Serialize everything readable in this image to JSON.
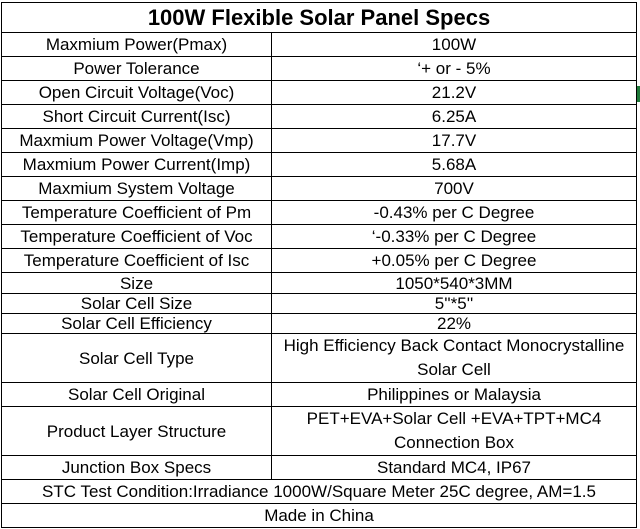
{
  "title": "100W Flexible Solar Panel Specs",
  "rows": [
    {
      "label": "Maxmium Power(Pmax)",
      "value": "100W"
    },
    {
      "label": "Power Tolerance",
      "value": "‘+ or - 5%"
    },
    {
      "label": "Open Circuit Voltage(Voc)",
      "value": "21.2V"
    },
    {
      "label": "Short Circuit Current(Isc)",
      "value": "6.25A"
    },
    {
      "label": "Maxmium Power Voltage(Vmp)",
      "value": "17.7V"
    },
    {
      "label": "Maxmium Power Current(Imp)",
      "value": "5.68A"
    },
    {
      "label": "Maxmium System Voltage",
      "value": "700V"
    },
    {
      "label": "Temperature Coefficient of Pm",
      "value": "-0.43% per C Degree"
    },
    {
      "label": "Temperature Coefficient of Voc",
      "value": "‘-0.33% per C Degree"
    },
    {
      "label": "Temperature Coefficient of Isc",
      "value": "+0.05% per C Degree"
    },
    {
      "label": "Size",
      "value": "1050*540*3MM"
    },
    {
      "label": "Solar Cell Size",
      "value": "5''*5''"
    },
    {
      "label": "Solar Cell Efficiency",
      "value": "22%"
    },
    {
      "label": "Solar Cell Type",
      "value": "High Efficiency Back Contact Monocrystalline Solar Cell"
    },
    {
      "label": "Solar Cell Original",
      "value": "Philippines or Malaysia"
    },
    {
      "label": "Product Layer Structure",
      "value": "PET+EVA+Solar Cell +EVA+TPT+MC4 Connection Box"
    },
    {
      "label": "Junction Box Specs",
      "value": "Standard MC4, IP67"
    }
  ],
  "stc_condition": "STC Test Condition:Irradiance 1000W/Square Meter 25C degree, AM=1.5",
  "footer": "Made in China"
}
